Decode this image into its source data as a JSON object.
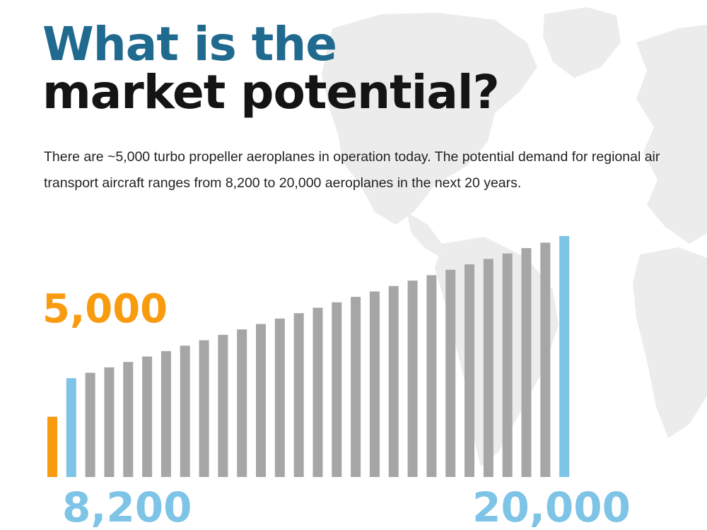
{
  "title": {
    "line1": "What is the",
    "line2": "market potential?"
  },
  "description": "There are ~5,000 turbo propeller aeroplanes in operation today. The potential demand for regional air transport aircraft ranges from 8,200 to 20,000 aeroplanes in the next 20 years.",
  "colors": {
    "title_accent": "#1f6a8e",
    "title_dark": "#141414",
    "current": "#f89b0f",
    "range_end": "#7ec4e6",
    "interpolated": "#a6a6a6",
    "map": "#ececec"
  },
  "chart_data": {
    "type": "bar",
    "title": "",
    "xlabel": "",
    "ylabel": "",
    "ylim": [
      0,
      20000
    ],
    "grid": false,
    "legend": "none",
    "annotations": {
      "current_label": "5,000",
      "low_label": "8,200",
      "high_label": "20,000"
    },
    "series": [
      {
        "name": "",
        "role": "current",
        "values": [
          5000
        ]
      },
      {
        "name": "",
        "role": "range",
        "values": [
          8200,
          8650,
          9100,
          9550,
          10000,
          10450,
          10900,
          11350,
          11800,
          12250,
          12700,
          13150,
          13600,
          14050,
          14500,
          14950,
          15400,
          15850,
          16300,
          16750,
          17200,
          17650,
          18100,
          18550,
          19000,
          19450,
          20000
        ]
      }
    ]
  }
}
